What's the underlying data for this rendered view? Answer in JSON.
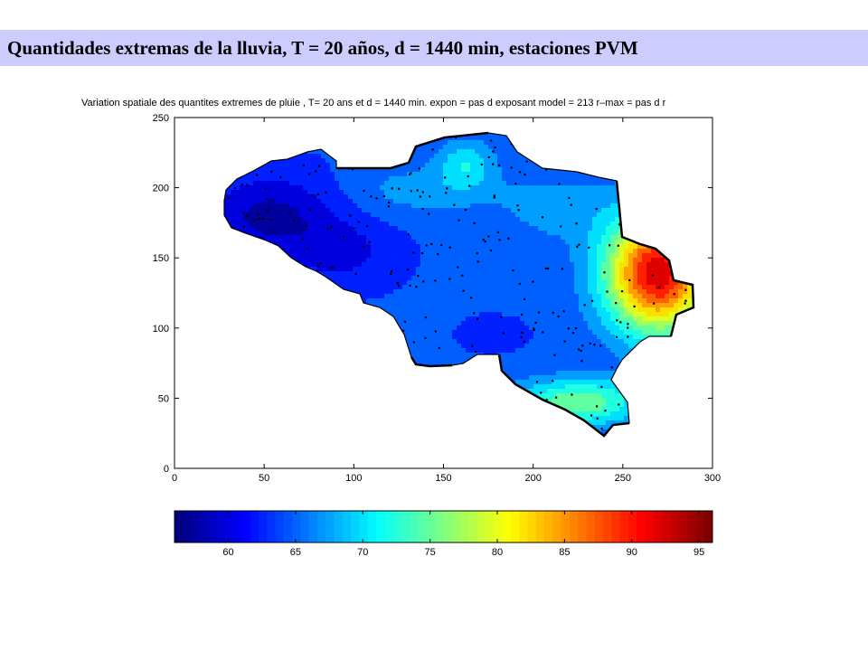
{
  "slide_title": "Quantidades extremas de la lluvia, T = 20 años, d = 1440 min, estaciones PVM",
  "chart_data": {
    "type": "heatmap",
    "title": "Variation spatiale des quantites extremes de pluie , T= 20 ans et d = 1440 min. expon = pas d exposant model = 213 r–max = pas d r",
    "xlabel": "",
    "ylabel": "",
    "xlim": [
      0,
      300
    ],
    "ylim": [
      0,
      250
    ],
    "x_ticks": [
      "0",
      "50",
      "100",
      "150",
      "200",
      "250",
      "300"
    ],
    "y_ticks": [
      "0",
      "50",
      "100",
      "150",
      "200",
      "250"
    ],
    "colorbar": {
      "range": [
        56,
        96
      ],
      "ticks": [
        "60",
        "65",
        "70",
        "75",
        "80",
        "85",
        "90",
        "95"
      ],
      "tick_values": [
        60,
        65,
        70,
        75,
        80,
        85,
        90,
        95
      ],
      "colormap": "jet"
    },
    "value_peak": {
      "x": 272,
      "y": 140,
      "value": 93
    }
  }
}
